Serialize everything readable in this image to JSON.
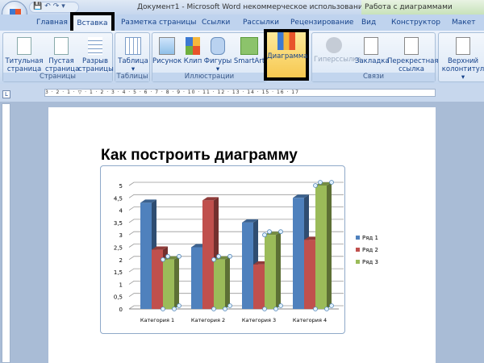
{
  "window": {
    "title": "Документ1 - Microsoft Word некоммерческое использование",
    "context_title": "Работа с диаграммами"
  },
  "tabs": [
    "Главная",
    "Вставка",
    "Разметка страницы",
    "Ссылки",
    "Рассылки",
    "Рецензирование",
    "Вид",
    "Конструктор",
    "Макет"
  ],
  "active_tab": "Вставка",
  "ribbon": {
    "groups": [
      {
        "label": "Страницы",
        "buttons": [
          "Титульная страница",
          "Пустая страница",
          "Разрыв страницы"
        ]
      },
      {
        "label": "Таблицы",
        "buttons": [
          "Таблица"
        ]
      },
      {
        "label": "Иллюстрации",
        "buttons": [
          "Рисунок",
          "Клип",
          "Фигуры",
          "SmartArt",
          "Диаграмма"
        ]
      },
      {
        "label": "Связи",
        "buttons": [
          "Гиперссылка",
          "Закладка",
          "Перекрестная ссылка"
        ]
      },
      {
        "label": "",
        "buttons": [
          "Верхний колонтитул"
        ]
      }
    ],
    "highlighted_button": "Диаграмма"
  },
  "ruler": {
    "marks": "3 · 2 · 1 · ▽ · 1 · 2 · 3 · 4 · 5 · 6 · 7 · 8 · 9 · 10 · 11 · 12 · 13 · 14 · 15 · 16 · 17"
  },
  "document": {
    "heading": "Как построить диаграмму"
  },
  "chart_data": {
    "type": "bar",
    "style": "3d-clustered-column",
    "categories": [
      "Категория 1",
      "Категория 2",
      "Категория 3",
      "Категория 4"
    ],
    "series": [
      {
        "name": "Ряд 1",
        "values": [
          4.3,
          2.5,
          3.5,
          4.5
        ],
        "color": "#4f81bd"
      },
      {
        "name": "Ряд 2",
        "values": [
          2.4,
          4.4,
          1.8,
          2.8
        ],
        "color": "#c0504d"
      },
      {
        "name": "Ряд 3",
        "values": [
          2,
          2,
          3,
          5
        ],
        "color": "#9bbb59"
      }
    ],
    "yticks": [
      "0",
      "0,5",
      "1",
      "1,5",
      "2",
      "2,5",
      "3",
      "3,5",
      "4",
      "4,5",
      "5"
    ],
    "ylim": [
      0,
      5
    ],
    "grid": true,
    "legend": "right",
    "selected_series": "Ряд 3"
  }
}
